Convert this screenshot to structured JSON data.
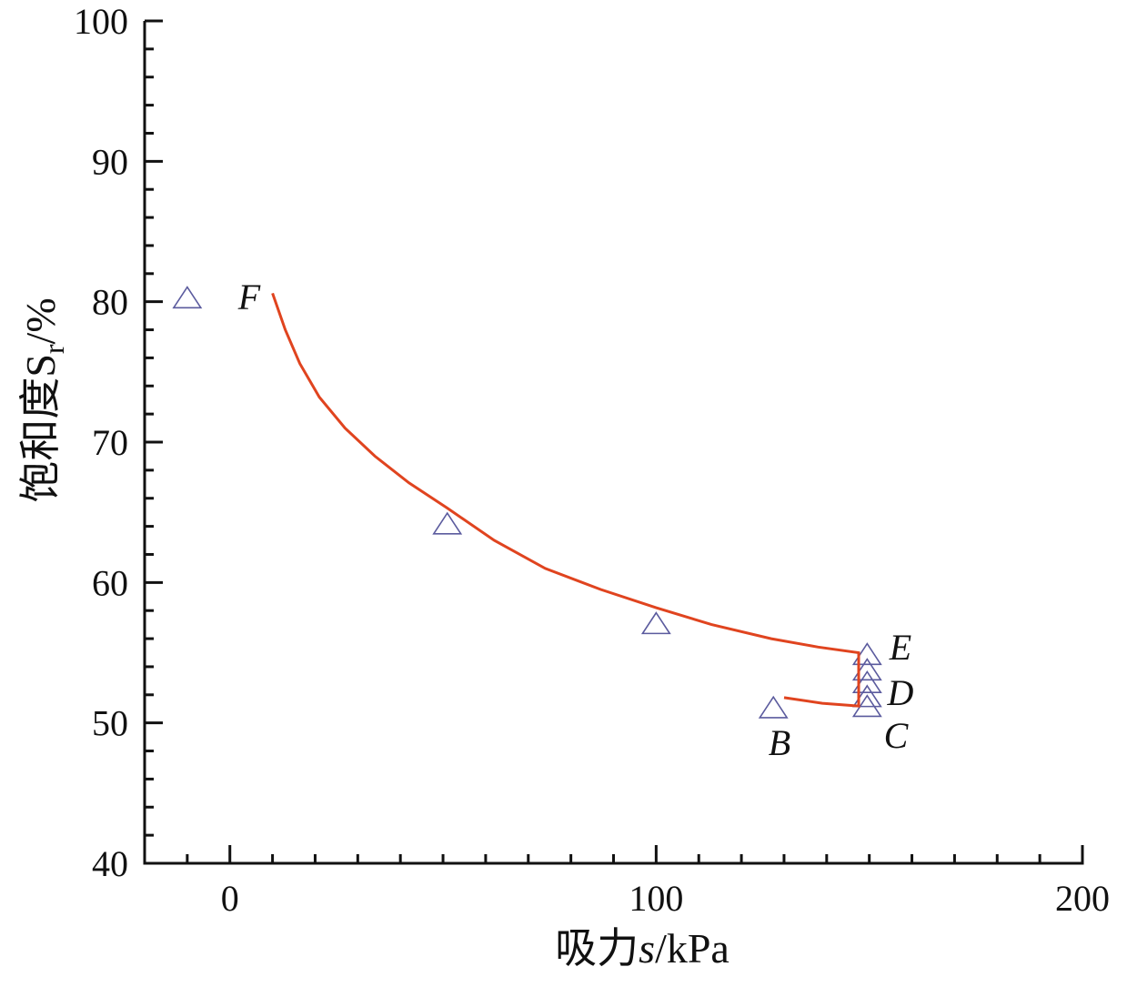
{
  "chart_data": {
    "type": "scatter",
    "xlabel": {
      "pre": "吸力",
      "italic": "s",
      "post": "/kPa"
    },
    "ylabel": {
      "pre": "饱和度S",
      "sub": "r",
      "post": "/%"
    },
    "xlim": [
      -20,
      200
    ],
    "ylim": [
      40,
      100
    ],
    "xticks": [
      0,
      100,
      200
    ],
    "yticks": [
      40,
      50,
      60,
      70,
      80,
      90,
      100
    ],
    "xminor_ticks": [
      -10,
      10,
      20,
      30,
      40,
      50,
      60,
      70,
      80,
      90,
      110,
      120,
      130,
      140,
      150,
      160,
      170,
      180,
      190
    ],
    "yminor_ticks": [
      42,
      44,
      46,
      48,
      52,
      54,
      56,
      58,
      62,
      64,
      66,
      68,
      72,
      74,
      76,
      78,
      82,
      84,
      86,
      88,
      92,
      94,
      96,
      98
    ],
    "series": [
      {
        "type": "scatter",
        "marker": "triangle",
        "color": "#5b5b9e",
        "x": [
          -10,
          51,
          100,
          127.5,
          149.5,
          149.5,
          149.5,
          149.5,
          149.5
        ],
        "values": [
          80.2,
          64.1,
          57.0,
          51.0,
          54.8,
          53.7,
          52.8,
          51.8,
          51.1
        ]
      },
      {
        "type": "line",
        "color": "#e0441f",
        "x": [
          10,
          13,
          16.4,
          21,
          27,
          34,
          42,
          51,
          62,
          74,
          87,
          100,
          113,
          127,
          138,
          147.5,
          147.5,
          139,
          130
        ],
        "values": [
          80.6,
          78.0,
          75.6,
          73.2,
          71.0,
          69.0,
          67.1,
          65.3,
          63.0,
          61.0,
          59.5,
          58.2,
          57.0,
          56.0,
          55.4,
          55.0,
          51.2,
          51.4,
          51.8
        ]
      }
    ],
    "annotations": [
      "F",
      "E",
      "D",
      "C",
      "B"
    ]
  }
}
